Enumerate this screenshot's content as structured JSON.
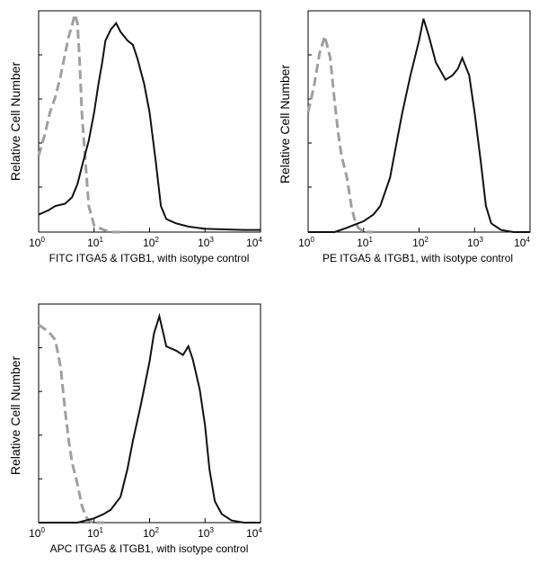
{
  "ticks": [
    {
      "base": "10",
      "exp": "0"
    },
    {
      "base": "10",
      "exp": "1"
    },
    {
      "base": "10",
      "exp": "2"
    },
    {
      "base": "10",
      "exp": "3"
    },
    {
      "base": "10",
      "exp": "4"
    }
  ],
  "colors": {
    "sample": "#111111",
    "isotype": "#a0a0a0",
    "axis": "#000000"
  },
  "chart_data": [
    {
      "type": "line",
      "id": "fitc",
      "xlabel": "FITC ITGA5 & ITGB1, with isotype control",
      "ylabel": "Relative Cell Number",
      "xscale": "log",
      "xlim": [
        1,
        10000
      ],
      "ylim": [
        0,
        1
      ],
      "legend": "none",
      "series": [
        {
          "role": "sample",
          "style": "solid",
          "x": [
            1,
            1.5,
            2,
            3,
            4,
            5,
            6,
            8,
            10,
            12,
            14,
            16,
            20,
            25,
            30,
            40,
            50,
            60,
            80,
            100,
            130,
            160,
            200,
            300,
            500,
            1000,
            5000,
            10000
          ],
          "y": [
            0.08,
            0.1,
            0.12,
            0.13,
            0.16,
            0.22,
            0.3,
            0.42,
            0.55,
            0.68,
            0.78,
            0.88,
            0.93,
            0.96,
            0.92,
            0.88,
            0.86,
            0.8,
            0.68,
            0.55,
            0.32,
            0.12,
            0.06,
            0.04,
            0.025,
            0.015,
            0.01,
            0.01
          ]
        },
        {
          "role": "isotype",
          "style": "dashed",
          "x": [
            1,
            1.3,
            1.6,
            2,
            2.5,
            3,
            3.5,
            4,
            4.5,
            5,
            5.5,
            6,
            7,
            8,
            10,
            15,
            20,
            30
          ],
          "y": [
            0.35,
            0.45,
            0.55,
            0.62,
            0.72,
            0.82,
            0.9,
            0.95,
            1.0,
            0.96,
            0.78,
            0.55,
            0.32,
            0.12,
            0.03,
            0.01,
            0.0,
            0.0
          ]
        }
      ]
    },
    {
      "type": "line",
      "id": "pe",
      "xlabel": "PE ITGA5 & ITGB1, with isotype control",
      "ylabel": "Relative Cell Number",
      "xscale": "log",
      "xlim": [
        1,
        10000
      ],
      "ylim": [
        0,
        1
      ],
      "legend": "none",
      "series": [
        {
          "role": "sample",
          "style": "solid",
          "x": [
            1,
            3,
            5,
            10,
            15,
            20,
            30,
            40,
            50,
            70,
            100,
            120,
            150,
            200,
            300,
            400,
            500,
            600,
            800,
            1000,
            1300,
            1600,
            2000,
            3000,
            5000,
            10000
          ],
          "y": [
            0.0,
            0.0,
            0.02,
            0.05,
            0.08,
            0.12,
            0.25,
            0.42,
            0.55,
            0.72,
            0.88,
            0.98,
            0.9,
            0.78,
            0.7,
            0.72,
            0.75,
            0.8,
            0.72,
            0.55,
            0.32,
            0.12,
            0.04,
            0.01,
            0.0,
            0.0
          ]
        },
        {
          "role": "isotype",
          "style": "dashed",
          "x": [
            1,
            1.3,
            1.6,
            2,
            2.5,
            3,
            3.5,
            4,
            5,
            6,
            7,
            8,
            10,
            15
          ],
          "y": [
            0.55,
            0.68,
            0.82,
            0.9,
            0.8,
            0.6,
            0.45,
            0.35,
            0.25,
            0.12,
            0.05,
            0.02,
            0.0,
            0.0
          ]
        }
      ]
    },
    {
      "type": "line",
      "id": "apc",
      "xlabel": "APC ITGA5 & ITGB1, with isotype control",
      "ylabel": "Relative Cell Number",
      "xscale": "log",
      "xlim": [
        1,
        10000
      ],
      "ylim": [
        0,
        1
      ],
      "legend": "none",
      "series": [
        {
          "role": "sample",
          "style": "solid",
          "x": [
            1,
            5,
            10,
            15,
            20,
            30,
            40,
            50,
            70,
            100,
            120,
            150,
            170,
            200,
            300,
            400,
            500,
            600,
            800,
            1000,
            1200,
            1500,
            2000,
            3000,
            5000,
            10000
          ],
          "y": [
            0.0,
            0.0,
            0.02,
            0.04,
            0.06,
            0.12,
            0.25,
            0.38,
            0.55,
            0.75,
            0.88,
            0.96,
            0.9,
            0.82,
            0.8,
            0.78,
            0.82,
            0.76,
            0.62,
            0.45,
            0.25,
            0.1,
            0.04,
            0.01,
            0.0,
            0.0
          ]
        },
        {
          "role": "isotype",
          "style": "dashed",
          "x": [
            1,
            1.3,
            1.6,
            2,
            2.5,
            3,
            3.5,
            4,
            5,
            6,
            7,
            8,
            10,
            15
          ],
          "y": [
            0.92,
            0.9,
            0.88,
            0.85,
            0.72,
            0.52,
            0.38,
            0.28,
            0.18,
            0.08,
            0.03,
            0.01,
            0.0,
            0.0
          ]
        }
      ]
    }
  ]
}
